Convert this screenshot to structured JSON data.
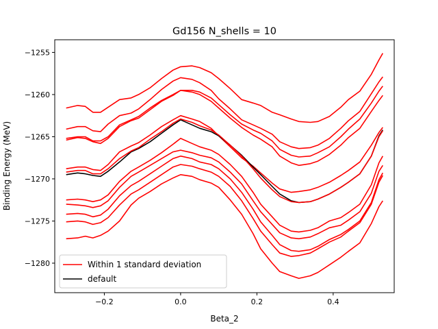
{
  "chart_data": {
    "type": "line",
    "title": "Gd156 N_shells = 10",
    "xlabel": "Beta_2",
    "ylabel": "Binding Energy (MeV)",
    "xlim": [
      -0.33,
      0.56
    ],
    "ylim": [
      -1283.5,
      -1253.5
    ],
    "xticks": [
      -0.2,
      0.0,
      0.2,
      0.4
    ],
    "xtick_labels": [
      "−0.2",
      "0.0",
      "0.2",
      "0.4"
    ],
    "yticks": [
      -1280,
      -1275,
      -1270,
      -1265,
      -1260,
      -1255
    ],
    "ytick_labels": [
      "−1280",
      "−1275",
      "−1270",
      "−1265",
      "−1260",
      "−1255"
    ],
    "grid": false,
    "legend_position": "lower-left",
    "legend": [
      {
        "label": "Within 1 standard deviation",
        "color": "#ff0000"
      },
      {
        "label": "default",
        "color": "#000000"
      }
    ],
    "x": [
      -0.3,
      -0.27,
      -0.25,
      -0.23,
      -0.21,
      -0.19,
      -0.16,
      -0.13,
      -0.11,
      -0.08,
      -0.05,
      -0.02,
      0.0,
      0.03,
      0.05,
      0.08,
      0.1,
      0.13,
      0.16,
      0.19,
      0.21,
      0.24,
      0.26,
      0.29,
      0.31,
      0.34,
      0.36,
      0.39,
      0.42,
      0.44,
      0.47,
      0.5,
      0.52,
      0.53
    ],
    "series": [
      {
        "color": "#ff0000",
        "values": [
          -1261.6,
          -1261.3,
          -1261.4,
          -1262.1,
          -1262.1,
          -1261.5,
          -1260.6,
          -1260.4,
          -1260.0,
          -1259.2,
          -1258.1,
          -1257.1,
          -1256.7,
          -1256.6,
          -1256.8,
          -1257.4,
          -1258.1,
          -1259.3,
          -1260.6,
          -1261.0,
          -1261.3,
          -1262.1,
          -1262.4,
          -1262.9,
          -1263.2,
          -1263.3,
          -1263.2,
          -1262.6,
          -1261.5,
          -1260.6,
          -1259.6,
          -1257.6,
          -1255.9,
          -1255.1
        ]
      },
      {
        "color": "#ff0000",
        "values": [
          -1264.1,
          -1263.8,
          -1263.8,
          -1264.3,
          -1264.4,
          -1263.5,
          -1262.5,
          -1262.2,
          -1261.7,
          -1260.6,
          -1259.4,
          -1258.4,
          -1258.0,
          -1258.2,
          -1258.6,
          -1259.5,
          -1260.5,
          -1261.7,
          -1263.0,
          -1263.6,
          -1264.0,
          -1264.7,
          -1265.6,
          -1266.2,
          -1266.4,
          -1266.3,
          -1266.0,
          -1265.2,
          -1264.0,
          -1263.1,
          -1262.0,
          -1259.9,
          -1258.5,
          -1257.9
        ]
      },
      {
        "color": "#ff0000",
        "values": [
          -1265.2,
          -1265.0,
          -1265.0,
          -1265.5,
          -1265.5,
          -1265.0,
          -1263.6,
          -1263.0,
          -1262.6,
          -1261.6,
          -1260.7,
          -1260.0,
          -1259.5,
          -1259.5,
          -1259.7,
          -1260.4,
          -1261.2,
          -1262.4,
          -1263.5,
          -1264.2,
          -1264.6,
          -1265.5,
          -1266.5,
          -1267.2,
          -1267.4,
          -1267.3,
          -1266.9,
          -1266.2,
          -1265.0,
          -1264.1,
          -1262.9,
          -1261.0,
          -1259.6,
          -1259.0
        ]
      },
      {
        "color": "#ff0000",
        "values": [
          -1265.4,
          -1265.1,
          -1265.2,
          -1265.6,
          -1265.8,
          -1265.2,
          -1263.8,
          -1263.1,
          -1262.8,
          -1261.8,
          -1260.8,
          -1260.1,
          -1259.5,
          -1259.7,
          -1260.0,
          -1260.8,
          -1261.6,
          -1262.8,
          -1263.9,
          -1264.8,
          -1265.3,
          -1266.2,
          -1267.3,
          -1268.1,
          -1268.4,
          -1268.2,
          -1267.9,
          -1267.1,
          -1266.0,
          -1265.1,
          -1264.0,
          -1262.0,
          -1260.7,
          -1260.1
        ]
      },
      {
        "color": "#ff0000",
        "values": [
          -1268.8,
          -1268.6,
          -1268.6,
          -1268.9,
          -1269.0,
          -1268.3,
          -1266.8,
          -1266.1,
          -1265.7,
          -1264.8,
          -1263.8,
          -1263.0,
          -1262.5,
          -1262.9,
          -1263.2,
          -1264.0,
          -1264.9,
          -1266.2,
          -1267.5,
          -1268.5,
          -1269.3,
          -1270.5,
          -1271.2,
          -1271.6,
          -1271.5,
          -1271.3,
          -1271.0,
          -1270.4,
          -1269.6,
          -1269.0,
          -1268.0,
          -1266.0,
          -1264.5,
          -1263.9
        ]
      },
      {
        "color": "#000000",
        "values": [
          -1269.5,
          -1269.3,
          -1269.4,
          -1269.6,
          -1269.7,
          -1269.1,
          -1268.0,
          -1266.8,
          -1266.4,
          -1265.6,
          -1264.6,
          -1263.6,
          -1263.0,
          -1263.6,
          -1264.0,
          -1264.4,
          -1264.9,
          -1266.0,
          -1267.2,
          -1268.6,
          -1269.5,
          -1270.9,
          -1271.8,
          -1272.6,
          -1272.8,
          -1272.7,
          -1272.4,
          -1271.8,
          -1271.0,
          -1270.4,
          -1269.4,
          -1267.3,
          -1264.9,
          -1264.2
        ]
      },
      {
        "color": "#ff0000",
        "values": [
          -1269.2,
          -1269.0,
          -1269.0,
          -1269.4,
          -1269.4,
          -1268.8,
          -1267.6,
          -1266.7,
          -1266.3,
          -1265.3,
          -1264.4,
          -1263.4,
          -1262.9,
          -1263.3,
          -1263.7,
          -1264.2,
          -1264.8,
          -1266.0,
          -1267.3,
          -1268.8,
          -1269.9,
          -1271.3,
          -1272.1,
          -1272.7,
          -1272.8,
          -1272.7,
          -1272.4,
          -1271.8,
          -1271.0,
          -1270.4,
          -1269.4,
          -1267.3,
          -1265.0,
          -1264.3
        ]
      },
      {
        "color": "#ff0000",
        "values": [
          -1272.5,
          -1272.4,
          -1272.5,
          -1272.7,
          -1272.5,
          -1271.9,
          -1270.3,
          -1269.1,
          -1268.6,
          -1267.8,
          -1266.9,
          -1265.9,
          -1265.2,
          -1265.8,
          -1266.2,
          -1266.6,
          -1267.1,
          -1268.3,
          -1269.7,
          -1271.6,
          -1273.0,
          -1274.5,
          -1275.5,
          -1276.2,
          -1276.3,
          -1276.1,
          -1275.8,
          -1275.0,
          -1274.6,
          -1274.0,
          -1273.0,
          -1270.7,
          -1268.1,
          -1267.3
        ]
      },
      {
        "color": "#ff0000",
        "values": [
          -1273.0,
          -1273.1,
          -1273.2,
          -1273.4,
          -1273.2,
          -1272.6,
          -1271.0,
          -1269.7,
          -1269.2,
          -1268.4,
          -1267.6,
          -1266.8,
          -1266.6,
          -1266.9,
          -1267.2,
          -1267.5,
          -1268.0,
          -1269.2,
          -1270.6,
          -1272.6,
          -1273.9,
          -1275.4,
          -1276.4,
          -1277.0,
          -1277.1,
          -1276.9,
          -1276.5,
          -1275.8,
          -1275.5,
          -1274.9,
          -1273.9,
          -1271.7,
          -1269.1,
          -1268.4
        ]
      },
      {
        "color": "#ff0000",
        "values": [
          -1274.2,
          -1274.1,
          -1274.2,
          -1274.5,
          -1274.3,
          -1273.6,
          -1272.0,
          -1270.8,
          -1270.3,
          -1269.4,
          -1268.5,
          -1267.6,
          -1267.3,
          -1267.6,
          -1268.0,
          -1268.3,
          -1268.8,
          -1270.0,
          -1271.6,
          -1273.6,
          -1275.1,
          -1276.7,
          -1277.8,
          -1278.5,
          -1278.6,
          -1278.4,
          -1278.0,
          -1277.2,
          -1276.6,
          -1276.0,
          -1275.0,
          -1272.8,
          -1270.1,
          -1269.3
        ]
      },
      {
        "color": "#ff0000",
        "values": [
          -1275.1,
          -1275.0,
          -1275.1,
          -1275.4,
          -1275.2,
          -1274.6,
          -1273.1,
          -1271.8,
          -1271.3,
          -1270.4,
          -1269.5,
          -1268.6,
          -1268.3,
          -1268.5,
          -1268.8,
          -1269.2,
          -1269.7,
          -1270.9,
          -1272.6,
          -1274.7,
          -1276.2,
          -1277.8,
          -1278.8,
          -1279.2,
          -1279.1,
          -1278.8,
          -1278.3,
          -1277.5,
          -1276.9,
          -1276.2,
          -1275.2,
          -1273.0,
          -1270.4,
          -1269.6
        ]
      },
      {
        "color": "#ff0000",
        "values": [
          -1277.1,
          -1277.0,
          -1276.8,
          -1277.0,
          -1276.7,
          -1276.2,
          -1275.0,
          -1273.1,
          -1272.3,
          -1271.5,
          -1270.6,
          -1269.9,
          -1269.5,
          -1269.7,
          -1270.1,
          -1270.5,
          -1271.0,
          -1272.5,
          -1274.2,
          -1276.5,
          -1278.3,
          -1280.0,
          -1281.0,
          -1281.5,
          -1281.8,
          -1281.5,
          -1281.1,
          -1280.2,
          -1279.3,
          -1278.6,
          -1277.6,
          -1275.3,
          -1273.3,
          -1272.6
        ]
      }
    ]
  }
}
